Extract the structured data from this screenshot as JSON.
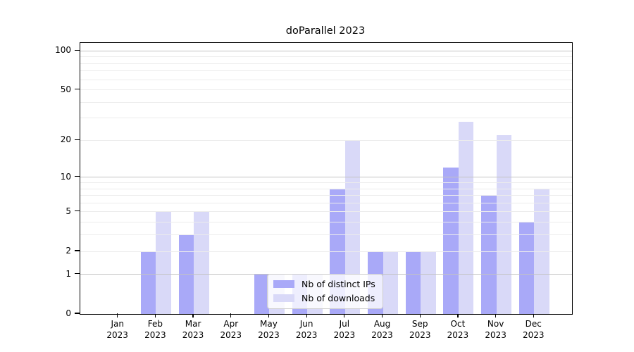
{
  "figure": {
    "title": "doParallel 2023"
  },
  "chart_data": {
    "type": "bar",
    "title": "doParallel 2023",
    "categories": [
      "Jan",
      "Feb",
      "Mar",
      "Apr",
      "May",
      "Jun",
      "Jul",
      "Aug",
      "Sep",
      "Oct",
      "Nov",
      "Dec"
    ],
    "category_year": "2023",
    "series": [
      {
        "name": "Nb of distinct IPs",
        "color": "#a9a9f8",
        "values": [
          0,
          2,
          3,
          0,
          1,
          1,
          8,
          2,
          2,
          12,
          7,
          4
        ]
      },
      {
        "name": "Nb of downloads",
        "color": "#d9d9f8",
        "values": [
          0,
          5,
          5,
          0,
          1,
          1,
          20,
          2,
          2,
          28,
          22,
          8
        ]
      }
    ],
    "xlabel": "",
    "ylabel": "",
    "yscale": "log1p",
    "ylim": [
      0,
      115
    ],
    "yticks": [
      0,
      1,
      2,
      5,
      10,
      20,
      50,
      100
    ],
    "grid": {
      "on": true,
      "major_values": [
        1,
        10,
        100
      ],
      "minor_values": [
        2,
        3,
        4,
        5,
        6,
        7,
        8,
        9,
        20,
        30,
        40,
        50,
        60,
        70,
        80,
        90
      ],
      "major_color": "#c3c3c3",
      "minor_color": "#ececec"
    },
    "legend": {
      "position": "lower center",
      "entries": [
        "Nb of distinct IPs",
        "Nb of downloads"
      ]
    }
  }
}
